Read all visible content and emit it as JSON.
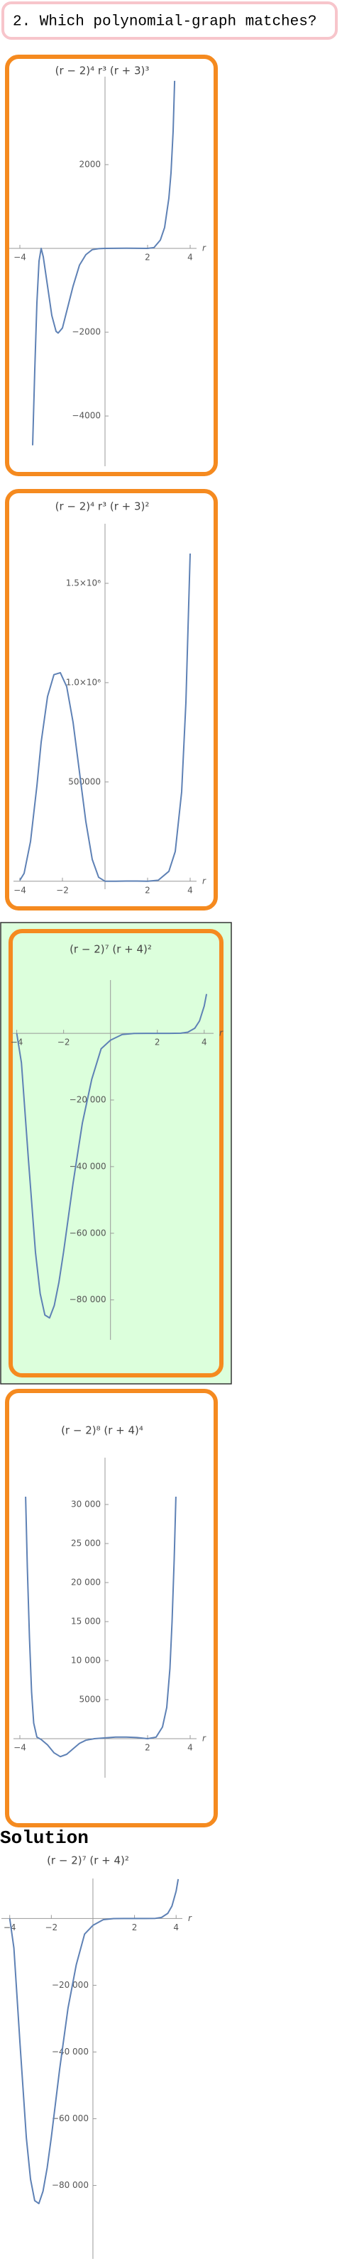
{
  "question": "2. Which polynomial-graph matches?",
  "solution_heading": "Solution",
  "chart_data": [
    {
      "type": "line",
      "title": "(r − 2)⁴ r³ (r + 3)³",
      "xlabel": "r",
      "color": "#5e81b5",
      "x": [
        -3.4,
        -3.3,
        -3.2,
        -3.1,
        -3.0,
        -2.9,
        -2.7,
        -2.5,
        -2.3,
        -2.2,
        -2.0,
        -1.8,
        -1.5,
        -1.2,
        -0.9,
        -0.6,
        -0.3,
        0,
        0.5,
        1,
        1.5,
        2,
        2.3,
        2.6,
        2.8,
        3.0,
        3.1,
        3.2,
        3.27
      ],
      "values": [
        -4700,
        -2900,
        -1300,
        -300,
        0,
        -200,
        -900,
        -1600,
        -1980,
        -2020,
        -1900,
        -1500,
        -900,
        -400,
        -150,
        -30,
        -5,
        0,
        2,
        5,
        3,
        0,
        20,
        200,
        500,
        1200,
        1800,
        2800,
        4000
      ],
      "xlim": [
        -4.5,
        4.3
      ],
      "ylim": [
        -5200,
        4100
      ],
      "xticks": [
        {
          "value": -4,
          "label": "−4"
        },
        2,
        4
      ],
      "yticks": [
        2000,
        {
          "value": -2000,
          "label": "−2000"
        },
        {
          "value": -4000,
          "label": "−4000"
        }
      ]
    },
    {
      "type": "line",
      "title": "(r − 2)⁴ r³ (r + 3)²",
      "xlabel": "r",
      "color": "#5e81b5",
      "x": [
        -4,
        -3.8,
        -3.5,
        -3.2,
        -3.0,
        -2.7,
        -2.4,
        -2.1,
        -1.8,
        -1.5,
        -1.2,
        -0.9,
        -0.6,
        -0.3,
        0,
        0.5,
        1,
        1.5,
        2,
        2.5,
        3,
        3.3,
        3.6,
        3.8,
        4
      ],
      "values": [
        5000,
        40000,
        200000,
        480000,
        700000,
        930000,
        1040000,
        1050000,
        980000,
        800000,
        550000,
        300000,
        110000,
        20000,
        0,
        0,
        1000,
        1000,
        0,
        5000,
        50000,
        150000,
        450000,
        900000,
        1650000
      ],
      "xlim": [
        -4.3,
        4.3
      ],
      "ylim": [
        -40000,
        1800000
      ],
      "xticks": [
        {
          "value": -4,
          "label": "−4"
        },
        {
          "value": -2,
          "label": "−2"
        },
        2,
        4
      ],
      "yticks": [
        500000,
        {
          "value": 1000000,
          "label": "1.0×10⁶"
        },
        {
          "value": 1500000,
          "label": "1.5×10⁶"
        }
      ]
    },
    {
      "type": "line",
      "title": "(r − 2)⁷ (r + 4)²",
      "xlabel": "r",
      "color": "#5e81b5",
      "x": [
        -4,
        -3.8,
        -3.5,
        -3.2,
        -3.0,
        -2.8,
        -2.6,
        -2.4,
        -2.2,
        -2.0,
        -1.6,
        -1.2,
        -0.8,
        -0.4,
        0,
        0.5,
        1,
        1.5,
        2,
        2.5,
        3,
        3.3,
        3.6,
        3.8,
        4.0,
        4.1
      ],
      "values": [
        0,
        -8831,
        -38061,
        -65796,
        -78125,
        -84538,
        -85423,
        -81730,
        -74705,
        -65536,
        -45135,
        -26938,
        -13814,
        -4644,
        -2048,
        -346,
        -25,
        -0.24,
        0,
        0.33,
        49,
        334,
        1550,
        3725,
        8192,
        11816
      ],
      "xlim": [
        -4.2,
        4.4
      ],
      "ylim": [
        -92000,
        16000
      ],
      "xticks": [
        {
          "value": -4,
          "label": "−4"
        },
        {
          "value": -2,
          "label": "−2"
        },
        2,
        4
      ],
      "yticks": [
        {
          "value": -20000,
          "label": "−20 000"
        },
        {
          "value": -40000,
          "label": "−40 000"
        },
        {
          "value": -60000,
          "label": "−60 000"
        },
        {
          "value": -80000,
          "label": "−80 000"
        }
      ]
    },
    {
      "type": "line",
      "title": "(r − 2)⁸ (r + 4)⁴",
      "xlabel": "r",
      "color": "#5e81b5",
      "x": [
        -3.73,
        -3.65,
        -3.55,
        -3.45,
        -3.35,
        -3.2,
        -3.0,
        -2.7,
        -2.4,
        -2.1,
        -1.8,
        -1.5,
        -1.2,
        -0.9,
        -0.5,
        0,
        0.5,
        1,
        1.5,
        2,
        2.4,
        2.7,
        2.9,
        3.05,
        3.15,
        3.25,
        3.33
      ],
      "values": [
        31000,
        22000,
        13000,
        6000,
        2000,
        200,
        -100,
        -800,
        -1800,
        -2300,
        -2000,
        -1300,
        -600,
        -200,
        0,
        100,
        200,
        200,
        150,
        0,
        200,
        1500,
        4000,
        9000,
        15000,
        23000,
        31000
      ],
      "xlim": [
        -4.3,
        4.3
      ],
      "ylim": [
        -5000,
        36000
      ],
      "xticks": [
        {
          "value": -4,
          "label": "−4"
        },
        2,
        4
      ],
      "yticks": [
        5000,
        {
          "value": 10000,
          "label": "10 000"
        },
        {
          "value": 15000,
          "label": "15 000"
        },
        {
          "value": 20000,
          "label": "20 000"
        },
        {
          "value": 25000,
          "label": "25 000"
        },
        {
          "value": 30000,
          "label": "30 000"
        }
      ]
    },
    {
      "type": "line",
      "title": "(r − 2)⁷ (r + 4)²",
      "xlabel": "r",
      "color": "#5e81b5",
      "x": [
        -4,
        -3.8,
        -3.5,
        -3.2,
        -3.0,
        -2.8,
        -2.6,
        -2.4,
        -2.2,
        -2.0,
        -1.6,
        -1.2,
        -0.8,
        -0.4,
        0,
        0.5,
        1,
        1.5,
        2,
        2.5,
        3,
        3.3,
        3.6,
        3.8,
        4.0,
        4.1
      ],
      "values": [
        0,
        -8831,
        -38061,
        -65796,
        -78125,
        -84538,
        -85423,
        -81730,
        -74705,
        -65536,
        -45135,
        -26938,
        -13814,
        -4644,
        -2048,
        -346,
        -25,
        -0.24,
        0,
        0.33,
        49,
        334,
        1550,
        3725,
        8192,
        11816
      ],
      "xlim": [
        -4.4,
        4.3
      ],
      "ylim": [
        -102000,
        12000
      ],
      "xticks": [
        {
          "value": -4,
          "label": "−4"
        },
        {
          "value": -2,
          "label": "−2"
        },
        2,
        4
      ],
      "yticks": [
        {
          "value": -20000,
          "label": "−20 000"
        },
        {
          "value": -40000,
          "label": "−40 000"
        },
        {
          "value": -60000,
          "label": "−60 000"
        },
        {
          "value": -80000,
          "label": "−80 000"
        }
      ]
    }
  ]
}
